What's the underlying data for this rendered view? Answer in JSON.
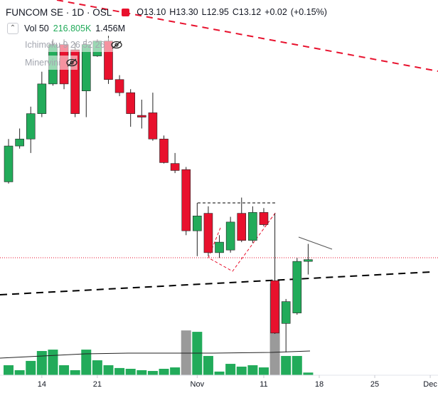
{
  "chart_data": {
    "type": "candlestick",
    "title": "FUNCOM SE",
    "interval": "1D",
    "exchange": "OSL",
    "legend": {
      "ohlc": [
        {
          "label": "O",
          "value": "13.10"
        },
        {
          "label": "H",
          "value": "13.30"
        },
        {
          "label": "L",
          "value": "12.95"
        },
        {
          "label": "C",
          "value": "13.12"
        }
      ],
      "change": "+0.02",
      "change_percent": "(+0.15%)"
    },
    "volume_legend": {
      "name": "Vol 50",
      "value": "216.805K",
      "average": "1.456M"
    },
    "indicators": [
      "Ichimoku 9 26 52 26",
      "Minervini"
    ],
    "categories": [
      null,
      null,
      null,
      null,
      null,
      null,
      null,
      null,
      null,
      null,
      null,
      null,
      null,
      null,
      null,
      null,
      null,
      null,
      null,
      null,
      null,
      null,
      null,
      null,
      null,
      null,
      null,
      null
    ],
    "open": [
      14.01,
      14.42,
      14.5,
      14.79,
      15.13,
      15.58,
      15.52,
      15.05,
      15.45,
      15.62,
      15.18,
      15.03,
      14.77,
      14.8,
      14.5,
      14.22,
      14.15,
      13.45,
      13.65,
      13.2,
      13.23,
      13.65,
      13.34,
      13.66,
      12.88,
      12.39,
      12.51,
      13.1
    ],
    "high": [
      14.5,
      14.62,
      14.87,
      15.27,
      15.64,
      15.64,
      15.6,
      15.64,
      15.64,
      15.68,
      15.23,
      15.07,
      14.95,
      15.03,
      14.54,
      14.34,
      14.18,
      13.77,
      13.73,
      13.4,
      13.61,
      13.83,
      13.73,
      13.71,
      13.65,
      12.67,
      13.14,
      13.3
    ],
    "low": [
      13.99,
      14.39,
      14.34,
      14.75,
      15.11,
      15.07,
      14.75,
      14.75,
      15.44,
      15.13,
      14.99,
      14.64,
      14.62,
      14.48,
      14.22,
      14.11,
      13.4,
      13.16,
      13.16,
      13.14,
      13.2,
      13.32,
      13.31,
      13.5,
      12.27,
      12.06,
      12.49,
      12.95
    ],
    "close": [
      14.42,
      14.5,
      14.79,
      15.13,
      15.58,
      15.13,
      14.79,
      15.58,
      15.62,
      15.18,
      15.03,
      14.79,
      14.75,
      14.5,
      14.23,
      14.14,
      13.45,
      13.62,
      13.2,
      13.32,
      13.55,
      13.34,
      13.66,
      13.52,
      12.28,
      12.64,
      13.1,
      13.12
    ],
    "volume": [
      690,
      370,
      970,
      1610,
      1700,
      690,
      370,
      1700,
      1010,
      690,
      510,
      460,
      370,
      320,
      460,
      550,
      2940,
      2850,
      1290,
      280,
      780,
      600,
      690,
      550,
      5980,
      1290,
      1290,
      216.805
    ],
    "up_color": "#22ab5a",
    "down_color": "#e8112d",
    "volume_colors": [
      "#22ab5a",
      "#22ab5a",
      "#22ab5a",
      "#22ab5a",
      "#22ab5a",
      "#22ab5a",
      "#22ab5a",
      "#22ab5a",
      "#22ab5a",
      "#22ab5a",
      "#22ab5a",
      "#22ab5a",
      "#22ab5a",
      "#22ab5a",
      "#22ab5a",
      "#22ab5a",
      "#9a9a9a",
      "#22ab5a",
      "#22ab5a",
      "#22ab5a",
      "#22ab5a",
      "#22ab5a",
      "#22ab5a",
      "#22ab5a",
      "#9a9a9a",
      "#22ab5a",
      "#22ab5a",
      "#22ab5a"
    ],
    "xlim": [
      -0.77,
      38.7
    ],
    "xticks": [
      {
        "value": 3,
        "label": "14"
      },
      {
        "value": 8,
        "label": "21"
      },
      {
        "value": 17,
        "label": "Nov"
      },
      {
        "value": 23,
        "label": "11"
      },
      {
        "value": 28,
        "label": "18"
      },
      {
        "value": 33,
        "label": "25"
      },
      {
        "value": 38,
        "label": "Dec"
      }
    ],
    "ylim": [
      11.79,
      16.09
    ],
    "y2lim": [
      0,
      24300
    ]
  }
}
